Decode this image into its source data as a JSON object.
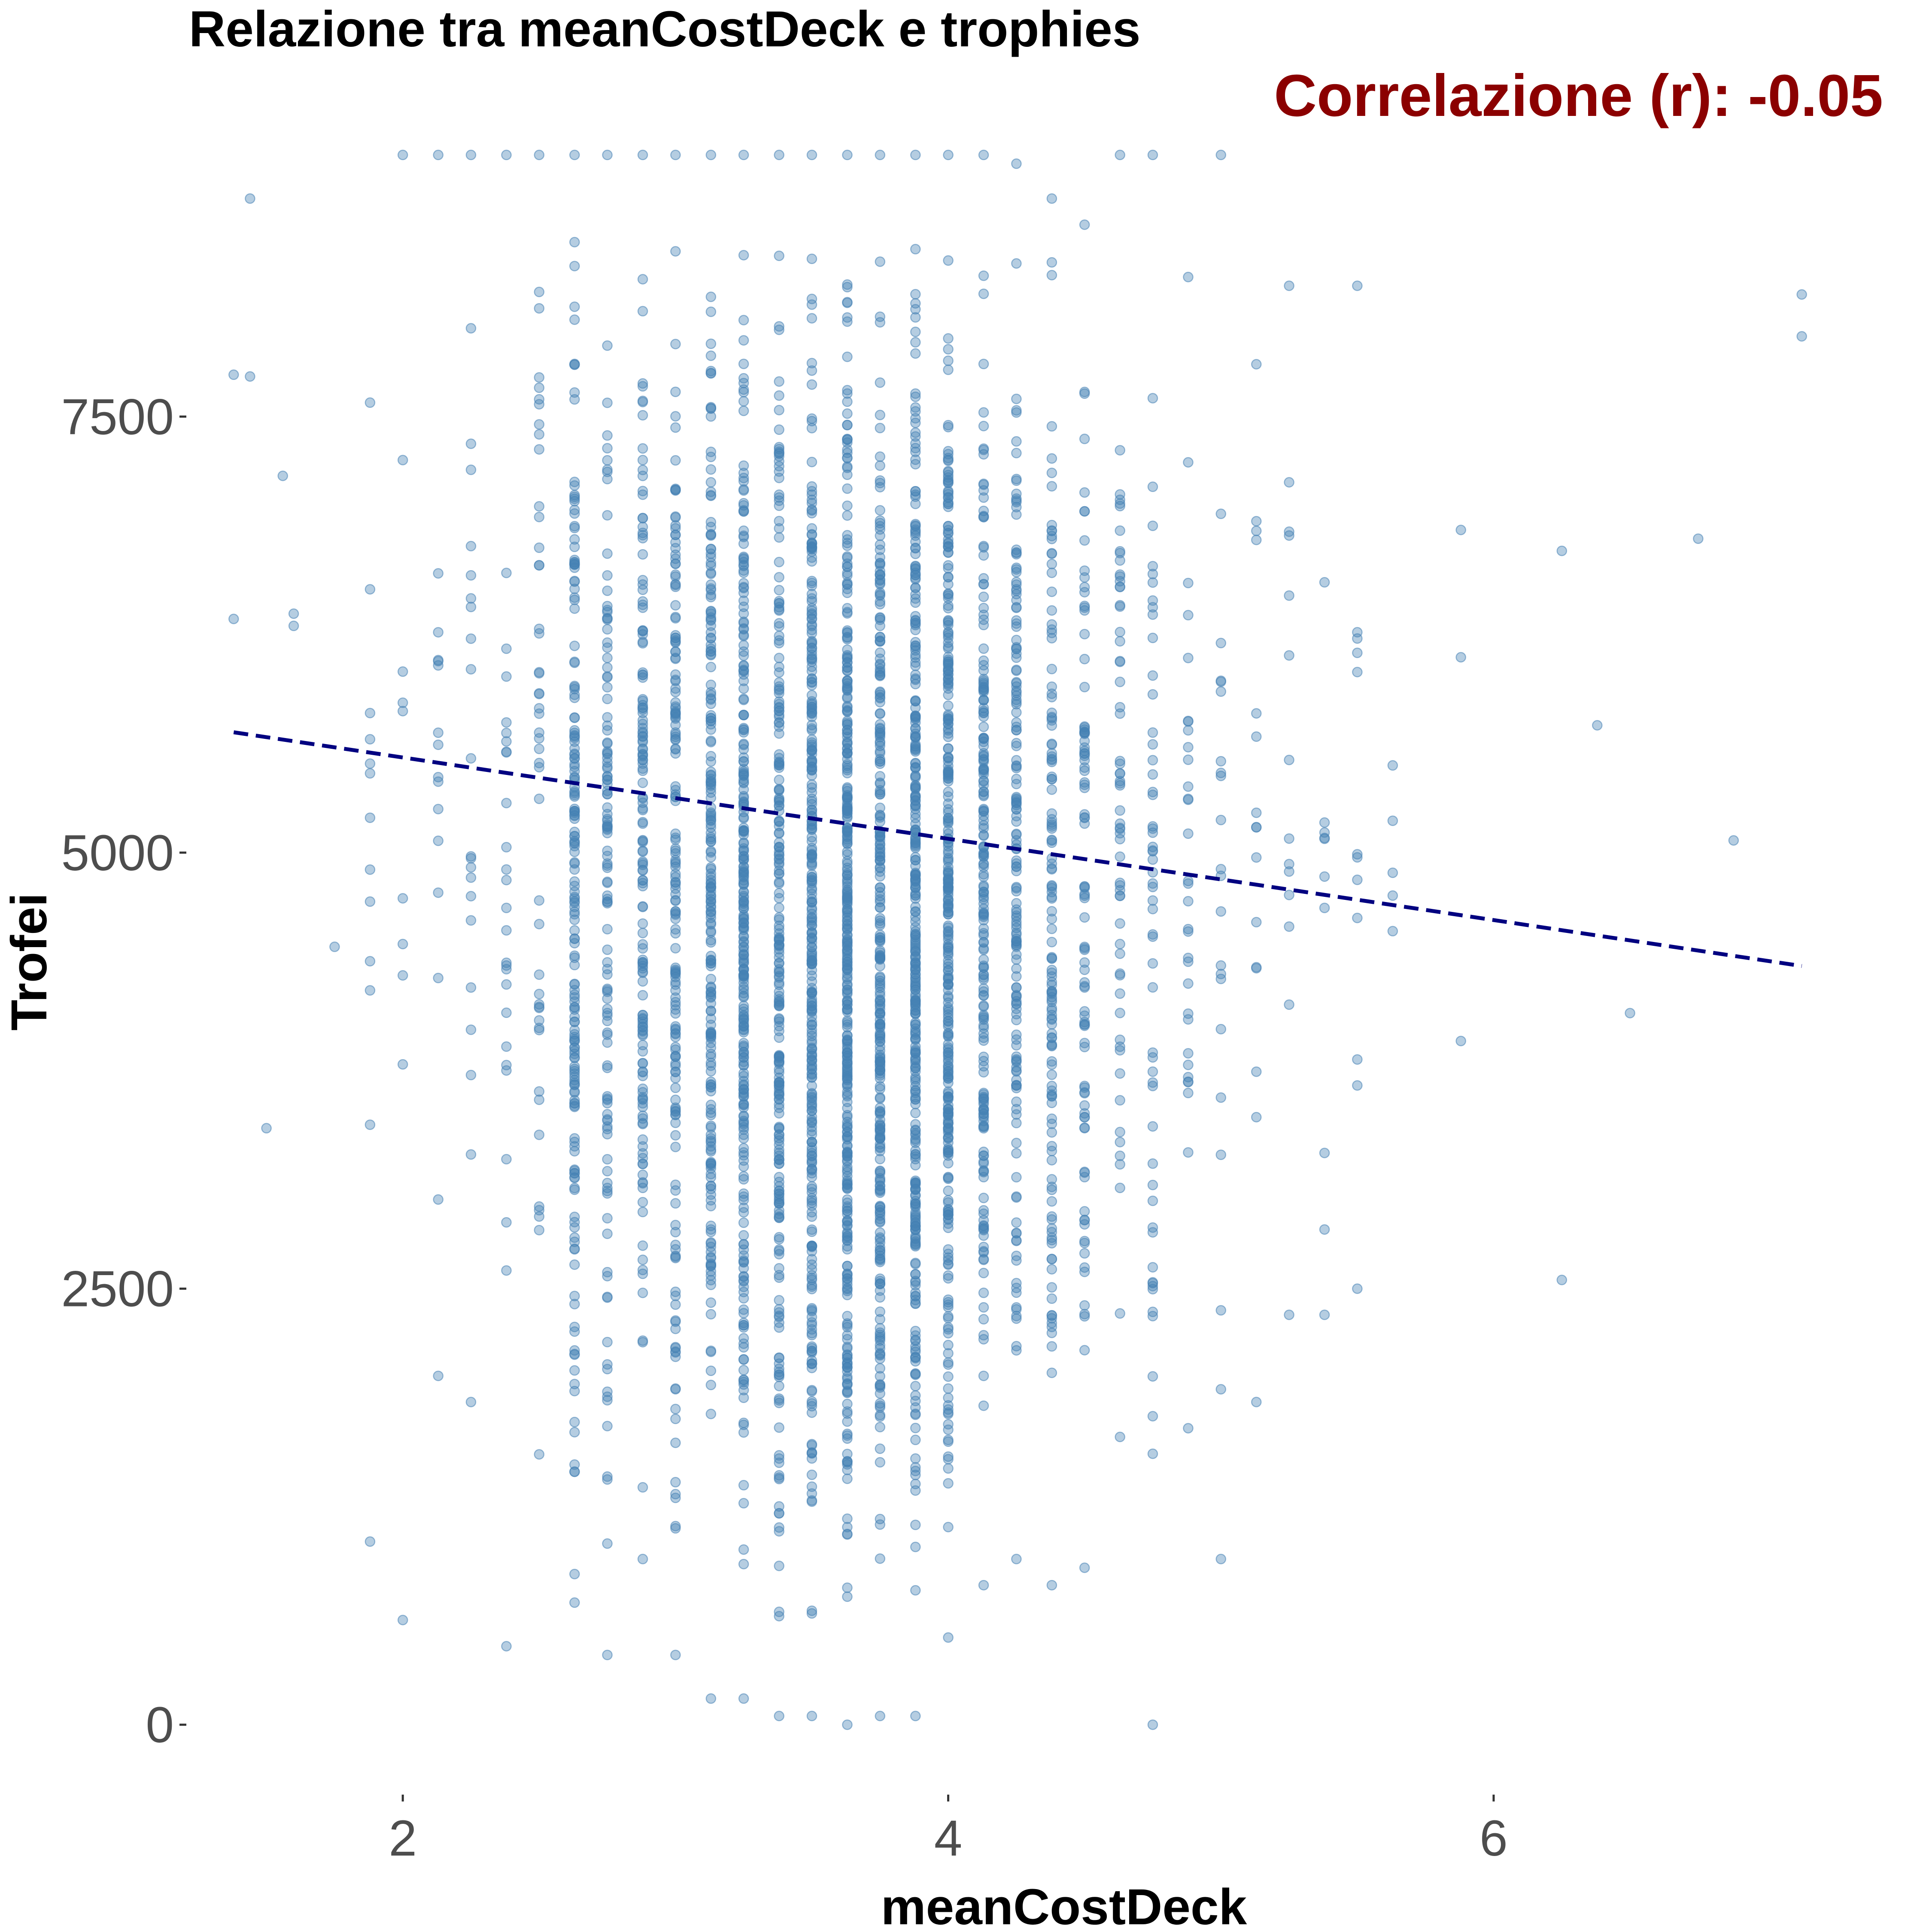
{
  "chart_data": {
    "type": "scatter",
    "title": "Relazione tra meanCostDeck e trophies",
    "subtitle": "Correlazione (r): -0.05",
    "xlabel": "meanCostDeck",
    "ylabel": "Trofei",
    "xlim": [
      1.2,
      7.45
    ],
    "ylim": [
      -450,
      9150
    ],
    "x_ticks": [
      2,
      4,
      6
    ],
    "x_tick_labels": [
      "2",
      "4",
      "6"
    ],
    "y_ticks": [
      0,
      2500,
      5000,
      7500
    ],
    "y_tick_labels": [
      "0",
      "2500",
      "5000",
      "7500"
    ],
    "grid": false,
    "legend": "none",
    "point_color": "#4682b4",
    "point_opacity": 0.4,
    "trend_line": {
      "style": "dashed",
      "color": "#000080",
      "points": [
        {
          "x": 1.38,
          "y": 5690
        },
        {
          "x": 7.13,
          "y": 4350
        }
      ]
    },
    "columns": [
      {
        "x": 1.88,
        "ymin": 1050,
        "ymax": 7580,
        "count": 8
      },
      {
        "x": 2.0,
        "ymin": 600,
        "ymax": 9000,
        "count": 8
      },
      {
        "x": 2.13,
        "ymin": 2000,
        "ymax": 9000,
        "count": 14
      },
      {
        "x": 2.25,
        "ymin": 1850,
        "ymax": 9000,
        "count": 20
      },
      {
        "x": 2.38,
        "ymin": 450,
        "ymax": 9000,
        "count": 25
      },
      {
        "x": 2.5,
        "ymin": 1550,
        "ymax": 9000,
        "count": 45
      },
      {
        "x": 2.63,
        "ymin": 700,
        "ymax": 9000,
        "count": 180
      },
      {
        "x": 2.75,
        "ymin": 400,
        "ymax": 9000,
        "count": 120
      },
      {
        "x": 2.88,
        "ymin": 950,
        "ymax": 9000,
        "count": 150
      },
      {
        "x": 3.0,
        "ymin": 400,
        "ymax": 9000,
        "count": 170
      },
      {
        "x": 3.13,
        "ymin": 150,
        "ymax": 9000,
        "count": 220
      },
      {
        "x": 3.25,
        "ymin": 150,
        "ymax": 9000,
        "count": 280
      },
      {
        "x": 3.38,
        "ymin": 50,
        "ymax": 9000,
        "count": 250
      },
      {
        "x": 3.5,
        "ymin": 50,
        "ymax": 9000,
        "count": 320
      },
      {
        "x": 3.63,
        "ymin": 0,
        "ymax": 9000,
        "count": 380
      },
      {
        "x": 3.75,
        "ymin": 50,
        "ymax": 9000,
        "count": 300
      },
      {
        "x": 3.88,
        "ymin": 50,
        "ymax": 9000,
        "count": 350
      },
      {
        "x": 4.0,
        "ymin": 500,
        "ymax": 9000,
        "count": 330
      },
      {
        "x": 4.13,
        "ymin": 800,
        "ymax": 9000,
        "count": 200
      },
      {
        "x": 4.25,
        "ymin": 950,
        "ymax": 8950,
        "count": 160
      },
      {
        "x": 4.38,
        "ymin": 800,
        "ymax": 8750,
        "count": 130
      },
      {
        "x": 4.5,
        "ymin": 900,
        "ymax": 8600,
        "count": 90
      },
      {
        "x": 4.63,
        "ymin": 1650,
        "ymax": 9000,
        "count": 60
      },
      {
        "x": 4.75,
        "ymin": 0,
        "ymax": 9000,
        "count": 55
      },
      {
        "x": 4.88,
        "ymin": 1700,
        "ymax": 8300,
        "count": 30
      },
      {
        "x": 5.0,
        "ymin": 950,
        "ymax": 9000,
        "count": 20
      },
      {
        "x": 5.13,
        "ymin": 1850,
        "ymax": 7800,
        "count": 14
      },
      {
        "x": 5.25,
        "ymin": 2350,
        "ymax": 8250,
        "count": 12
      },
      {
        "x": 5.38,
        "ymin": 2350,
        "ymax": 6550,
        "count": 8
      },
      {
        "x": 5.5,
        "ymin": 2500,
        "ymax": 8250,
        "count": 10
      },
      {
        "x": 5.63,
        "ymin": 4550,
        "ymax": 5500,
        "count": 3
      }
    ],
    "isolated_points": [
      {
        "x": 1.38,
        "y": 7740
      },
      {
        "x": 1.38,
        "y": 6340
      },
      {
        "x": 1.44,
        "y": 8750
      },
      {
        "x": 1.44,
        "y": 7730
      },
      {
        "x": 1.5,
        "y": 3420
      },
      {
        "x": 1.56,
        "y": 7160
      },
      {
        "x": 1.6,
        "y": 6370
      },
      {
        "x": 1.6,
        "y": 6300
      },
      {
        "x": 1.75,
        "y": 4460
      },
      {
        "x": 1.88,
        "y": 5800
      },
      {
        "x": 1.88,
        "y": 5650
      },
      {
        "x": 1.88,
        "y": 5200
      },
      {
        "x": 5.88,
        "y": 6120
      },
      {
        "x": 5.88,
        "y": 6850
      },
      {
        "x": 5.88,
        "y": 3920
      },
      {
        "x": 6.25,
        "y": 6730
      },
      {
        "x": 6.25,
        "y": 2550
      },
      {
        "x": 6.38,
        "y": 5730
      },
      {
        "x": 6.5,
        "y": 4080
      },
      {
        "x": 6.75,
        "y": 6800
      },
      {
        "x": 6.88,
        "y": 5070
      },
      {
        "x": 7.13,
        "y": 8200
      },
      {
        "x": 7.13,
        "y": 7960
      }
    ]
  }
}
